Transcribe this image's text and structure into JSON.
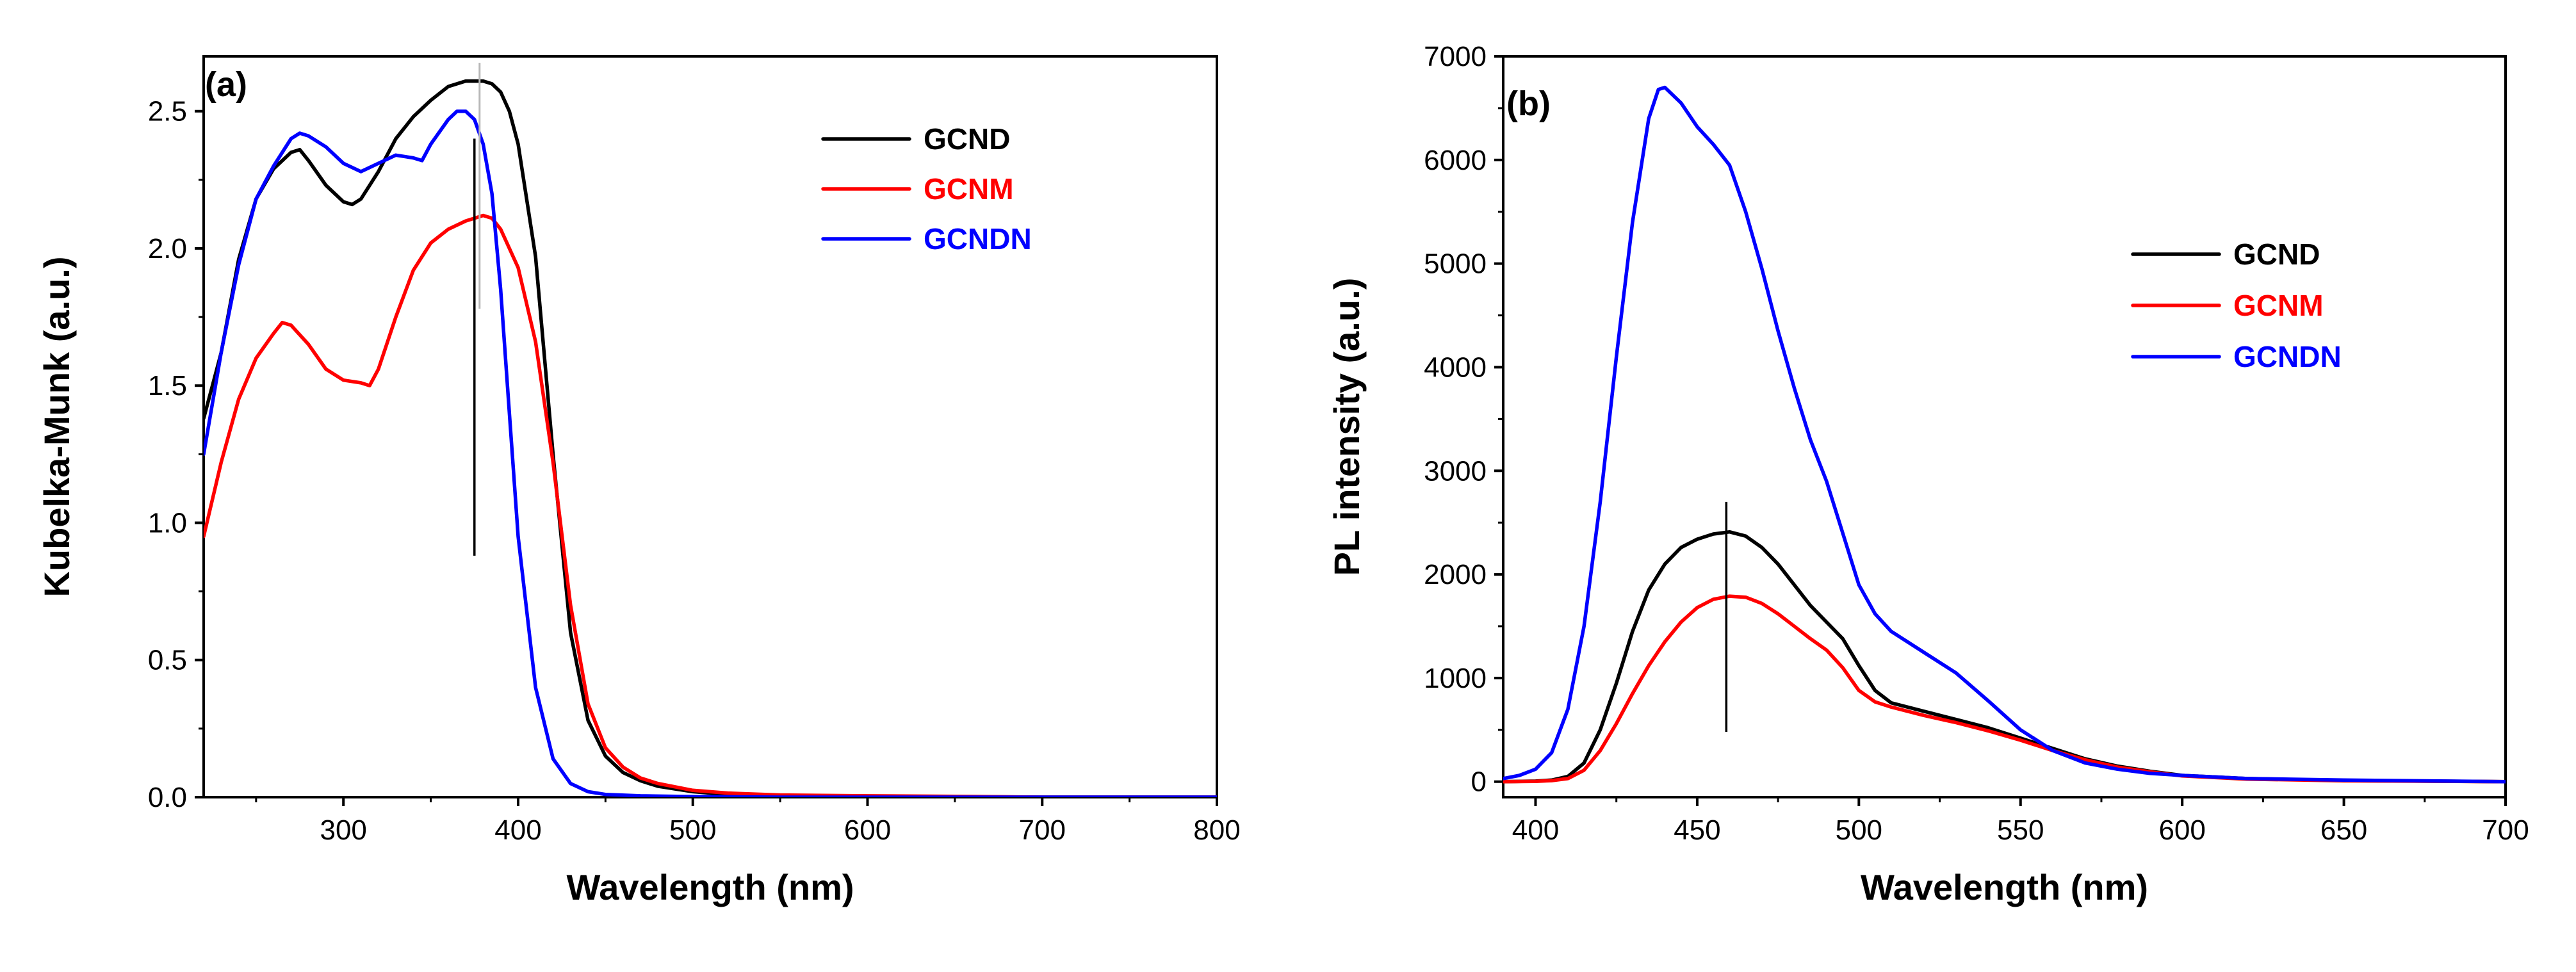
{
  "chart_data": [
    {
      "type": "line",
      "panel_label": "(a)",
      "xlabel": "Wavelength (nm)",
      "ylabel": "Kubelka-Munk (a.u.)",
      "xlim": [
        220,
        800
      ],
      "ylim": [
        0,
        2.7
      ],
      "xticks": [
        300,
        400,
        500,
        600,
        700,
        800
      ],
      "yticks": [
        0.0,
        0.5,
        1.0,
        1.5,
        2.0,
        2.5
      ],
      "ytick_labels": [
        "0.0",
        "0.5",
        "1.0",
        "1.5",
        "2.0",
        "2.5"
      ],
      "marker_x": 375,
      "legend_position": "top-right",
      "series": [
        {
          "name": "GCND",
          "color": "#000000",
          "x": [
            220,
            230,
            240,
            250,
            260,
            270,
            275,
            280,
            290,
            300,
            305,
            310,
            320,
            330,
            340,
            350,
            360,
            370,
            375,
            380,
            385,
            390,
            395,
            400,
            410,
            420,
            430,
            440,
            450,
            460,
            470,
            480,
            500,
            520,
            550,
            600,
            650,
            700,
            800
          ],
          "y": [
            1.38,
            1.62,
            1.96,
            2.18,
            2.29,
            2.35,
            2.36,
            2.32,
            2.23,
            2.17,
            2.16,
            2.18,
            2.28,
            2.4,
            2.48,
            2.54,
            2.59,
            2.61,
            2.61,
            2.61,
            2.6,
            2.57,
            2.5,
            2.38,
            1.97,
            1.25,
            0.6,
            0.28,
            0.15,
            0.09,
            0.06,
            0.04,
            0.02,
            0.01,
            0.005,
            0.003,
            0.002,
            0.0,
            0.0
          ]
        },
        {
          "name": "GCNM",
          "color": "#ff0000",
          "x": [
            220,
            230,
            240,
            250,
            260,
            265,
            270,
            280,
            290,
            300,
            310,
            315,
            320,
            330,
            340,
            350,
            360,
            370,
            380,
            385,
            390,
            400,
            410,
            420,
            430,
            440,
            450,
            460,
            470,
            480,
            500,
            520,
            550,
            600,
            650,
            700,
            800
          ],
          "y": [
            0.95,
            1.22,
            1.45,
            1.6,
            1.69,
            1.73,
            1.72,
            1.65,
            1.56,
            1.52,
            1.51,
            1.5,
            1.56,
            1.75,
            1.92,
            2.02,
            2.07,
            2.1,
            2.12,
            2.11,
            2.07,
            1.93,
            1.66,
            1.22,
            0.7,
            0.34,
            0.18,
            0.11,
            0.07,
            0.05,
            0.025,
            0.015,
            0.008,
            0.005,
            0.003,
            0.0,
            0.0
          ]
        },
        {
          "name": "GCNDN",
          "color": "#0000ff",
          "x": [
            220,
            230,
            240,
            250,
            260,
            270,
            275,
            280,
            290,
            300,
            310,
            320,
            330,
            340,
            345,
            350,
            360,
            365,
            370,
            375,
            380,
            385,
            390,
            395,
            400,
            410,
            420,
            430,
            440,
            450,
            470,
            500,
            550,
            600,
            700,
            800
          ],
          "y": [
            1.25,
            1.62,
            1.94,
            2.18,
            2.3,
            2.4,
            2.42,
            2.41,
            2.37,
            2.31,
            2.28,
            2.31,
            2.34,
            2.33,
            2.32,
            2.38,
            2.47,
            2.5,
            2.5,
            2.47,
            2.38,
            2.2,
            1.85,
            1.4,
            0.95,
            0.4,
            0.14,
            0.05,
            0.02,
            0.01,
            0.005,
            0.002,
            0.0,
            0.0,
            0.0,
            0.0
          ]
        }
      ]
    },
    {
      "type": "line",
      "panel_label": "(b)",
      "xlabel": "Wavelength (nm)",
      "ylabel": "PL intensity (a.u.)",
      "xlim": [
        390,
        700
      ],
      "ylim": [
        -150,
        7000
      ],
      "xticks": [
        400,
        450,
        500,
        550,
        600,
        650,
        700
      ],
      "yticks": [
        0,
        1000,
        2000,
        3000,
        4000,
        5000,
        6000,
        7000
      ],
      "ytick_labels": [
        "0",
        "1000",
        "2000",
        "3000",
        "4000",
        "5000",
        "6000",
        "7000"
      ],
      "marker_x": 459,
      "legend_position": "right",
      "series": [
        {
          "name": "GCND",
          "color": "#000000",
          "x": [
            390,
            400,
            405,
            410,
            415,
            420,
            425,
            430,
            435,
            440,
            445,
            450,
            455,
            460,
            465,
            470,
            475,
            480,
            485,
            490,
            495,
            500,
            505,
            510,
            520,
            530,
            540,
            550,
            560,
            570,
            580,
            590,
            600,
            620,
            650,
            700
          ],
          "y": [
            0,
            5,
            15,
            50,
            180,
            500,
            950,
            1450,
            1850,
            2100,
            2260,
            2340,
            2390,
            2410,
            2370,
            2260,
            2100,
            1900,
            1700,
            1540,
            1380,
            1120,
            880,
            760,
            680,
            600,
            520,
            420,
            320,
            220,
            150,
            100,
            60,
            30,
            10,
            0
          ]
        },
        {
          "name": "GCNM",
          "color": "#ff0000",
          "x": [
            390,
            400,
            405,
            410,
            415,
            420,
            425,
            430,
            435,
            440,
            445,
            450,
            455,
            460,
            465,
            470,
            475,
            480,
            485,
            490,
            495,
            500,
            505,
            510,
            520,
            530,
            540,
            550,
            560,
            570,
            580,
            590,
            600,
            620,
            650,
            700
          ],
          "y": [
            0,
            3,
            10,
            30,
            110,
            300,
            560,
            850,
            1120,
            1350,
            1540,
            1680,
            1760,
            1790,
            1780,
            1720,
            1620,
            1500,
            1380,
            1270,
            1100,
            880,
            770,
            720,
            640,
            570,
            490,
            400,
            300,
            210,
            140,
            95,
            55,
            25,
            8,
            0
          ]
        },
        {
          "name": "GCNDN",
          "color": "#0000ff",
          "x": [
            390,
            395,
            400,
            405,
            410,
            415,
            420,
            425,
            430,
            435,
            438,
            440,
            445,
            450,
            455,
            460,
            465,
            470,
            475,
            480,
            485,
            490,
            495,
            500,
            505,
            510,
            520,
            530,
            540,
            550,
            560,
            570,
            580,
            590,
            600,
            620,
            650,
            700
          ],
          "y": [
            30,
            60,
            120,
            280,
            700,
            1500,
            2700,
            4100,
            5400,
            6400,
            6680,
            6700,
            6550,
            6320,
            6150,
            5950,
            5500,
            4950,
            4350,
            3800,
            3300,
            2900,
            2400,
            1900,
            1620,
            1450,
            1250,
            1050,
            780,
            500,
            300,
            180,
            120,
            80,
            60,
            30,
            15,
            0
          ]
        }
      ]
    }
  ]
}
